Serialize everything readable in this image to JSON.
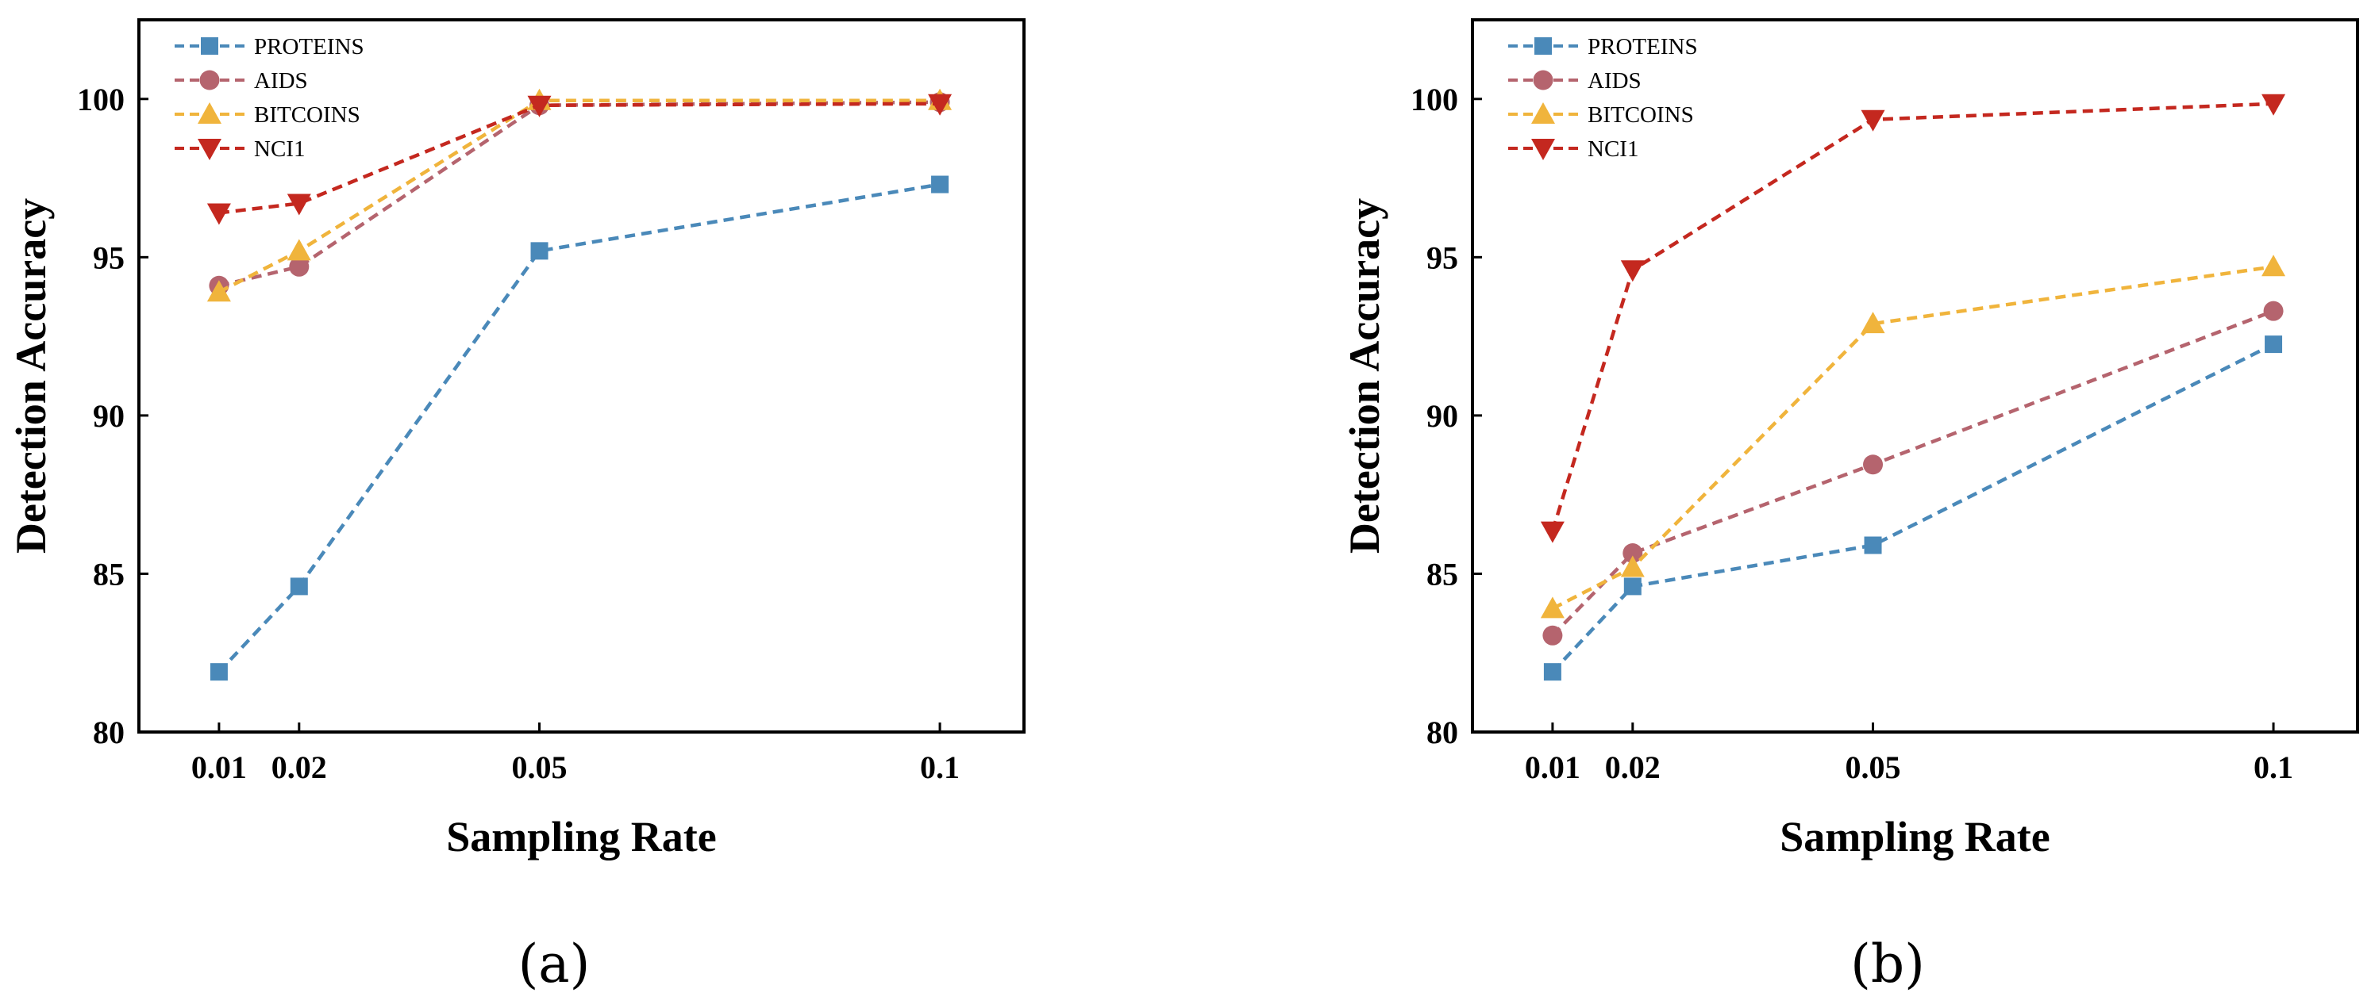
{
  "figure": {
    "panels": [
      "(a)",
      "(b)"
    ]
  },
  "chart_data": [
    {
      "panel_label": "(a)",
      "type": "line",
      "x": [
        0.01,
        0.02,
        0.05,
        0.1
      ],
      "x_tick_labels": [
        "0.01",
        "0.02",
        "0.05",
        "0.1"
      ],
      "xlim": [
        0.0,
        0.1105
      ],
      "ylim": [
        80,
        102.5
      ],
      "y_ticks": [
        80,
        85,
        90,
        95,
        100
      ],
      "y_tick_labels": [
        "80",
        "85",
        "90",
        "95",
        "100"
      ],
      "xlabel": "Sampling Rate",
      "ylabel": "Detection Accuracy",
      "legend_position": "top-left",
      "series": [
        {
          "name": "PROTEINS",
          "color": "#4a89b9",
          "marker": "square",
          "values": [
            81.9,
            84.6,
            95.2,
            97.3
          ]
        },
        {
          "name": "AIDS",
          "color": "#b5646e",
          "marker": "circle",
          "values": [
            94.1,
            94.7,
            99.8,
            99.9
          ]
        },
        {
          "name": "BITCOINS",
          "color": "#f0b43c",
          "marker": "triangle",
          "values": [
            93.9,
            95.2,
            99.95,
            99.95
          ]
        },
        {
          "name": "NCI1",
          "color": "#c4281f",
          "marker": "triangle-down",
          "values": [
            96.4,
            96.7,
            99.8,
            99.85
          ]
        }
      ]
    },
    {
      "panel_label": "(b)",
      "type": "line",
      "x": [
        0.01,
        0.02,
        0.05,
        0.1
      ],
      "x_tick_labels": [
        "0.01",
        "0.02",
        "0.05",
        "0.1"
      ],
      "xlim": [
        0.0,
        0.1105
      ],
      "ylim": [
        80,
        102.5
      ],
      "y_ticks": [
        80,
        85,
        90,
        95,
        100
      ],
      "y_tick_labels": [
        "80",
        "85",
        "90",
        "95",
        "100"
      ],
      "xlabel": "Sampling Rate",
      "ylabel": "Detection Accuracy",
      "legend_position": "top-left",
      "series": [
        {
          "name": "PROTEINS",
          "color": "#4a89b9",
          "marker": "square",
          "values": [
            81.9,
            84.6,
            85.9,
            92.25
          ]
        },
        {
          "name": "AIDS",
          "color": "#b5646e",
          "marker": "circle",
          "values": [
            83.05,
            85.65,
            88.45,
            93.3
          ]
        },
        {
          "name": "BITCOINS",
          "color": "#f0b43c",
          "marker": "triangle",
          "values": [
            83.9,
            85.2,
            92.9,
            94.7
          ]
        },
        {
          "name": "NCI1",
          "color": "#c4281f",
          "marker": "triangle-down",
          "values": [
            86.35,
            94.6,
            99.35,
            99.85
          ]
        }
      ]
    }
  ]
}
